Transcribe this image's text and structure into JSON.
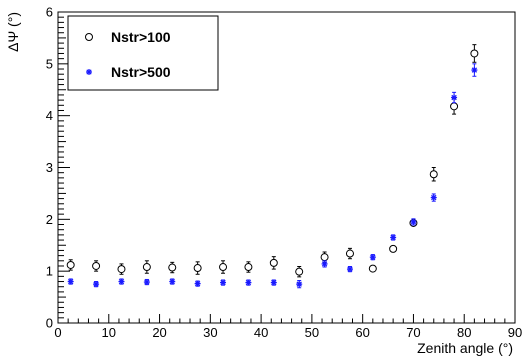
{
  "chart_data": {
    "type": "scatter",
    "xlabel": "Zenith angle (°)",
    "ylabel": "ΔΨ (°)",
    "xlim": [
      0,
      90
    ],
    "ylim": [
      0,
      6
    ],
    "x_ticks": [
      "0",
      "10",
      "20",
      "30",
      "40",
      "50",
      "60",
      "70",
      "80",
      "90"
    ],
    "y_ticks": [
      "0",
      "1",
      "2",
      "3",
      "4",
      "5",
      "6"
    ],
    "grid": false,
    "legend_position": "top-left",
    "series": [
      {
        "name": "Nstr>100",
        "marker": "open-circle",
        "color": "#000000",
        "x": [
          2.5,
          7.5,
          12.5,
          17.5,
          22.5,
          27.5,
          32.5,
          37.5,
          42.5,
          47.5,
          52.5,
          57.5,
          62,
          66,
          70,
          74,
          78,
          82
        ],
        "y": [
          1.12,
          1.1,
          1.04,
          1.08,
          1.07,
          1.06,
          1.08,
          1.08,
          1.16,
          0.99,
          1.27,
          1.34,
          1.05,
          1.43,
          1.93,
          2.87,
          4.18,
          5.2
        ],
        "err": [
          0.1,
          0.1,
          0.1,
          0.12,
          0.1,
          0.12,
          0.12,
          0.1,
          0.12,
          0.1,
          0.1,
          0.1,
          0.03,
          0.03,
          0.05,
          0.13,
          0.15,
          0.17
        ]
      },
      {
        "name": "Nstr>500",
        "marker": "star",
        "color": "#1a1aff",
        "x": [
          2.5,
          7.5,
          12.5,
          17.5,
          22.5,
          27.5,
          32.5,
          37.5,
          42.5,
          47.5,
          52.5,
          57.5,
          62,
          66,
          70,
          74,
          78,
          82
        ],
        "y": [
          0.8,
          0.75,
          0.8,
          0.79,
          0.8,
          0.76,
          0.78,
          0.78,
          0.78,
          0.75,
          1.14,
          1.04,
          1.27,
          1.65,
          1.95,
          2.42,
          4.35,
          4.88
        ],
        "err": [
          0.05,
          0.05,
          0.05,
          0.05,
          0.05,
          0.05,
          0.05,
          0.05,
          0.05,
          0.07,
          0.06,
          0.05,
          0.05,
          0.05,
          0.06,
          0.07,
          0.1,
          0.12
        ]
      }
    ]
  }
}
